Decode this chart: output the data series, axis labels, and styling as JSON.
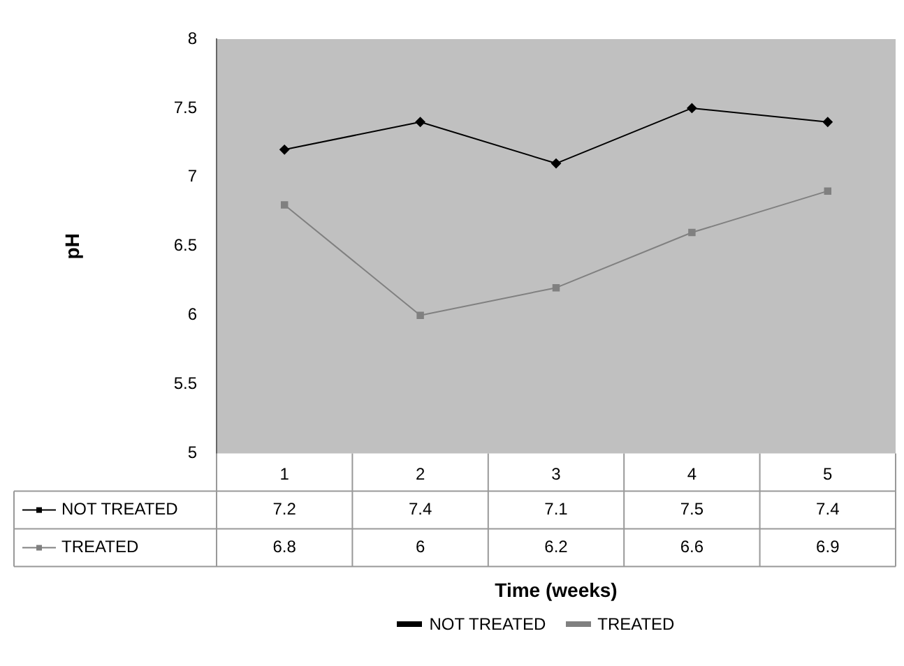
{
  "chart_data": {
    "type": "line",
    "xlabel": "Time (weeks)",
    "ylabel": "pH",
    "categories": [
      "1",
      "2",
      "3",
      "4",
      "5"
    ],
    "series": [
      {
        "name": "NOT TREATED",
        "color": "#000000",
        "values": [
          7.2,
          7.4,
          7.1,
          7.5,
          7.4
        ],
        "marker": "diamond"
      },
      {
        "name": "TREATED",
        "color": "#808080",
        "values": [
          6.8,
          6,
          6.2,
          6.6,
          6.9
        ],
        "marker": "square"
      }
    ],
    "ylim": [
      5,
      8
    ],
    "yticks": [
      5,
      5.5,
      6,
      6.5,
      7,
      7.5,
      8
    ],
    "grid": false,
    "legend": "bottom",
    "data_labels": true,
    "line_style": "solid"
  }
}
